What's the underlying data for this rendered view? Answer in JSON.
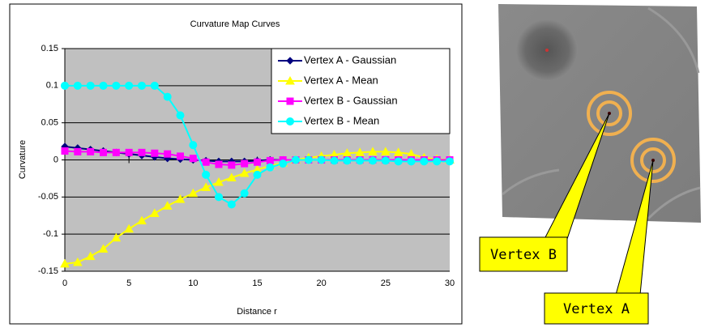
{
  "chart_data": {
    "type": "line",
    "title": "Curvature Map Curves",
    "xlabel": "Distance r",
    "ylabel": "Curvature",
    "x": [
      0,
      1,
      2,
      3,
      4,
      5,
      6,
      7,
      8,
      9,
      10,
      11,
      12,
      13,
      14,
      15,
      16,
      17,
      18,
      19,
      20,
      21,
      22,
      23,
      24,
      25,
      26,
      27,
      28,
      29,
      30
    ],
    "xlim": [
      0,
      30
    ],
    "xticks": [
      0,
      5,
      10,
      15,
      20,
      25,
      30
    ],
    "ylim": [
      -0.15,
      0.15
    ],
    "yticks": [
      -0.15,
      -0.1,
      -0.05,
      0,
      0.05,
      0.1,
      0.15
    ],
    "grid": true,
    "legend": "upper right",
    "series": [
      {
        "name": "Vertex A - Gaussian",
        "color": "#000080",
        "marker": "diamond",
        "values": [
          0.018,
          0.016,
          0.014,
          0.012,
          0.01,
          0.008,
          0.006,
          0.004,
          0.002,
          0.001,
          0,
          -0.001,
          -0.002,
          -0.002,
          -0.002,
          -0.001,
          0,
          0,
          0,
          0,
          0,
          0,
          0,
          0,
          0,
          0,
          0,
          0,
          0,
          0,
          0
        ]
      },
      {
        "name": "Vertex A - Mean",
        "color": "#ffff00",
        "marker": "triangle",
        "values": [
          -0.14,
          -0.138,
          -0.13,
          -0.12,
          -0.105,
          -0.093,
          -0.082,
          -0.072,
          -0.062,
          -0.053,
          -0.045,
          -0.037,
          -0.03,
          -0.024,
          -0.018,
          -0.013,
          -0.008,
          -0.004,
          0,
          0.003,
          0.005,
          0.007,
          0.009,
          0.01,
          0.011,
          0.011,
          0.01,
          0.008,
          0.003,
          0.001,
          0
        ]
      },
      {
        "name": "Vertex B - Gaussian",
        "color": "#ff00ff",
        "marker": "square",
        "values": [
          0.012,
          0.011,
          0.011,
          0.01,
          0.01,
          0.01,
          0.01,
          0.009,
          0.008,
          0.005,
          0.002,
          -0.003,
          -0.006,
          -0.007,
          -0.005,
          -0.003,
          -0.001,
          0,
          0,
          0,
          0,
          0,
          0,
          0,
          0,
          0,
          0,
          0,
          0,
          0,
          0
        ]
      },
      {
        "name": "Vertex B - Mean",
        "color": "#00ffff",
        "marker": "circle",
        "values": [
          0.1,
          0.1,
          0.1,
          0.1,
          0.1,
          0.1,
          0.1,
          0.1,
          0.085,
          0.06,
          0.02,
          -0.02,
          -0.05,
          -0.06,
          -0.045,
          -0.02,
          -0.01,
          -0.005,
          0,
          0,
          0,
          -0.001,
          -0.001,
          -0.001,
          -0.001,
          -0.001,
          -0.002,
          -0.002,
          -0.002,
          -0.002,
          -0.002
        ]
      }
    ]
  },
  "annotations": [
    {
      "text": "Vertex B"
    },
    {
      "text": "Vertex A"
    }
  ]
}
